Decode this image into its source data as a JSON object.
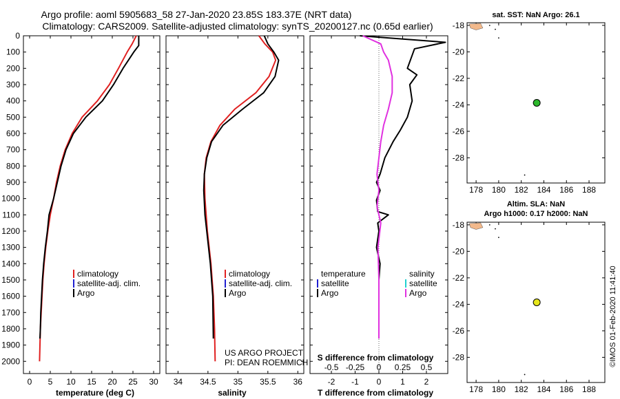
{
  "header": {
    "title_line1": "Argo profile: aoml 5905683_58 27-Jan-2020 23.85S 183.37E (NRT data)",
    "title_line2": "Climatology: CARS2009. Satellite-adjusted climatology: synTS_20200127.nc (0.65d earlier)"
  },
  "colors": {
    "climatology": "#e02020",
    "satellite_adj": "#1f1fd0",
    "argo": "#000000",
    "salinity_argo": "#e030e0",
    "salinity_satellite": "#20d0d0",
    "land": "#f2b98c",
    "sst_marker": "#2cb82c",
    "sla_marker": "#e6e61a"
  },
  "credit": {
    "project": "US ARGO PROJECT",
    "pi": "PI: DEAN ROEMMICH"
  },
  "timestamp": "©IMOS 01-Feb-2020 11:41:40",
  "chart_data": [
    {
      "id": "temperature",
      "type": "line",
      "xlabel": "temperature (deg C)",
      "ylabel": "",
      "xlim": [
        -1.5,
        31.5
      ],
      "ylim": [
        0,
        2075
      ],
      "y_inverted": true,
      "x_ticks": [
        0,
        5,
        10,
        15,
        20,
        25,
        30
      ],
      "x_tick_labels": [
        "0",
        "5",
        "10",
        "15",
        "20",
        "25",
        "30"
      ],
      "y_ticks": [
        0,
        100,
        200,
        300,
        400,
        500,
        600,
        700,
        800,
        900,
        1000,
        1100,
        1200,
        1300,
        1400,
        1500,
        1600,
        1700,
        1800,
        1900,
        2000
      ],
      "y_tick_labels": [
        "0",
        "100",
        "200",
        "300",
        "400",
        "500",
        "600",
        "700",
        "800",
        "900",
        "1000",
        "1100",
        "1200",
        "1300",
        "1400",
        "1500",
        "1600",
        "1700",
        "1800",
        "1900",
        "2000"
      ],
      "legend": [
        "climatology",
        "satellite-adj. clim.",
        "Argo"
      ],
      "series": [
        {
          "name": "climatology",
          "x": [
            25.8,
            24.8,
            23.6,
            21.5,
            19.3,
            16.4,
            12.7,
            10.3,
            8.6,
            7.4,
            6.5,
            5.8,
            5.0,
            4.4,
            3.9,
            3.5,
            3.2,
            3.0,
            2.8,
            2.6,
            2.5,
            2.4
          ],
          "y": [
            0,
            50,
            100,
            200,
            300,
            400,
            500,
            600,
            700,
            800,
            900,
            1000,
            1100,
            1200,
            1300,
            1400,
            1500,
            1600,
            1700,
            1800,
            1900,
            2000
          ]
        },
        {
          "name": "Argo",
          "x": [
            26.4,
            26.4,
            25.2,
            22.6,
            20.3,
            17.6,
            13.6,
            10.6,
            8.8,
            7.6,
            6.7,
            5.8,
            4.7,
            4.3,
            3.8,
            3.4,
            3.1,
            2.9,
            2.7,
            2.6,
            2.5
          ],
          "y": [
            0,
            60,
            100,
            200,
            300,
            400,
            500,
            600,
            700,
            800,
            900,
            1000,
            1100,
            1200,
            1300,
            1400,
            1500,
            1600,
            1700,
            1800,
            1860
          ]
        }
      ]
    },
    {
      "id": "salinity",
      "type": "line",
      "xlabel": "salinity",
      "xlim": [
        33.8,
        36.1
      ],
      "ylim": [
        0,
        2075
      ],
      "y_inverted": true,
      "x_ticks": [
        34,
        34.5,
        35,
        35.5,
        36
      ],
      "x_tick_labels": [
        "34",
        "34.5",
        "35",
        "35.5",
        "36"
      ],
      "legend": [
        "climatology",
        "satellite-adj. clim.",
        "Argo"
      ],
      "series": [
        {
          "name": "climatology",
          "x": [
            35.35,
            35.45,
            35.58,
            35.63,
            35.52,
            35.3,
            34.95,
            34.7,
            34.55,
            34.47,
            34.44,
            34.45,
            34.47,
            34.49,
            34.52,
            34.55,
            34.57,
            34.59,
            34.6,
            34.61,
            34.62
          ],
          "y": [
            0,
            50,
            100,
            150,
            250,
            350,
            450,
            550,
            650,
            750,
            850,
            1000,
            1100,
            1200,
            1300,
            1400,
            1500,
            1600,
            1700,
            1800,
            2000
          ]
        },
        {
          "name": "Argo",
          "x": [
            35.44,
            35.5,
            35.6,
            35.68,
            35.62,
            35.43,
            35.08,
            34.75,
            34.56,
            34.48,
            34.44,
            34.43,
            34.45,
            34.48,
            34.51,
            34.54,
            34.56,
            34.58,
            34.59
          ],
          "y": [
            0,
            50,
            100,
            150,
            250,
            350,
            450,
            550,
            650,
            750,
            850,
            950,
            1100,
            1200,
            1300,
            1400,
            1500,
            1600,
            1860
          ]
        }
      ]
    },
    {
      "id": "difference",
      "type": "line",
      "xlabel": "T difference from climatology",
      "top_axis_label": "S difference from climatology",
      "xlim": [
        -2.9,
        2.9
      ],
      "ylim": [
        0,
        2075
      ],
      "y_inverted": true,
      "x_ticks": [
        -2,
        -1,
        0,
        1,
        2
      ],
      "x_tick_labels": [
        "-2",
        "-1",
        "0",
        "1",
        "2"
      ],
      "top_ticks": [
        -0.5,
        -0.25,
        0,
        0.25,
        0.5
      ],
      "top_tick_labels": [
        "-0.5",
        "-0.25",
        "0",
        "0.25",
        "0.5"
      ],
      "legend_temperature": [
        "temperature",
        "satellite",
        "Argo"
      ],
      "legend_salinity": [
        "salinity",
        "satellite",
        "Argo"
      ],
      "series": [
        {
          "name": "T difference (Argo)",
          "x": [
            -0.8,
            2.8,
            1.5,
            1.2,
            1.6,
            1.3,
            1.4,
            1.2,
            0.9,
            0.6,
            0.25,
            0.05,
            -0.1,
            0.05,
            -0.1,
            -0.05,
            0.4,
            -0.05,
            0.0,
            -0.1,
            0.05,
            0.0,
            0.0,
            0.0
          ],
          "y": [
            0,
            40,
            80,
            200,
            240,
            300,
            400,
            500,
            580,
            650,
            750,
            850,
            900,
            950,
            1010,
            1080,
            1100,
            1150,
            1200,
            1300,
            1400,
            1500,
            1600,
            1860
          ]
        },
        {
          "name": "S difference (Argo)",
          "x": [
            -0.17,
            0.02,
            0.05,
            0.1,
            0.14,
            0.14,
            0.1,
            0.05,
            0.02,
            0.0,
            -0.02,
            0.0,
            -0.02,
            0.02,
            -0.01,
            0.0,
            0.0
          ],
          "y": [
            0,
            50,
            100,
            150,
            250,
            350,
            450,
            550,
            650,
            750,
            850,
            950,
            1050,
            1150,
            1300,
            1500,
            1860
          ]
        }
      ]
    },
    {
      "id": "map-sst",
      "type": "scatter",
      "title": "sat. SST: NaN Argo: 26.1",
      "xlim": [
        177.2,
        189.4
      ],
      "ylim": [
        -29.9,
        -17.8
      ],
      "x_ticks": [
        178,
        180,
        182,
        184,
        186,
        188
      ],
      "x_tick_labels": [
        "178",
        "180",
        "182",
        "184",
        "186",
        "188"
      ],
      "y_ticks": [
        -18,
        -20,
        -22,
        -24,
        -26,
        -28
      ],
      "y_tick_labels": [
        "-18",
        "-20",
        "-22",
        "-24",
        "-26",
        "-28"
      ],
      "points": [
        {
          "lon": 183.37,
          "lat": -23.85,
          "label": "Argo float"
        }
      ]
    },
    {
      "id": "map-sla",
      "type": "scatter",
      "title": "Altim. SLA: NaN",
      "subtitle": "Argo h1000: 0.17 h2000: NaN",
      "xlim": [
        177.2,
        189.4
      ],
      "ylim": [
        -29.9,
        -17.8
      ],
      "x_ticks": [
        178,
        180,
        182,
        184,
        186,
        188
      ],
      "x_tick_labels": [
        "178",
        "180",
        "182",
        "184",
        "186",
        "188"
      ],
      "y_ticks": [
        -18,
        -20,
        -22,
        -24,
        -26,
        -28
      ],
      "y_tick_labels": [
        "-18",
        "-20",
        "-22",
        "-24",
        "-26",
        "-28"
      ],
      "points": [
        {
          "lon": 183.37,
          "lat": -23.85,
          "label": "Argo float"
        }
      ]
    }
  ]
}
